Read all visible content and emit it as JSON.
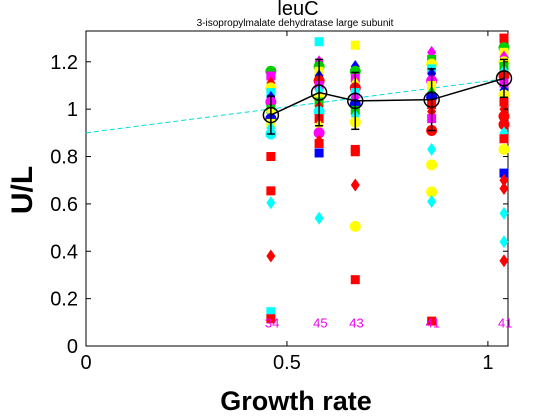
{
  "chart_data": {
    "type": "scatter",
    "title": "leuC",
    "subtitle": "3-isopropylmalate dehydratase large subunit",
    "xlabel": "Growth rate",
    "ylabel": "U/L",
    "xlim": [
      0,
      1.05
    ],
    "ylim": [
      0,
      1.33
    ],
    "xticks": [
      0,
      0.5,
      1
    ],
    "xtick_labels": [
      "0",
      "0.5",
      "1"
    ],
    "yticks": [
      0,
      0.2,
      0.4,
      0.6,
      0.8,
      1,
      1.2
    ],
    "ytick_labels": [
      "0",
      "0.2",
      "0.4",
      "0.6",
      "0.8",
      "1",
      "1.2"
    ],
    "fit_line": {
      "style": "dashed",
      "color": "#00dddd",
      "x": [
        0,
        1.05
      ],
      "y": [
        0.9,
        1.13
      ]
    },
    "mean_series": {
      "color": "#000000",
      "points": [
        {
          "x": 0.46,
          "y": 0.975,
          "err": 0.08
        },
        {
          "x": 0.58,
          "y": 1.07,
          "err": 0.14
        },
        {
          "x": 0.67,
          "y": 1.035,
          "err": 0.12
        },
        {
          "x": 0.86,
          "y": 1.04,
          "err": 0.13
        },
        {
          "x": 1.04,
          "y": 1.13,
          "err": 0.08
        }
      ]
    },
    "sample_counts": [
      {
        "x": 0.46,
        "label": "34"
      },
      {
        "x": 0.58,
        "label": "45"
      },
      {
        "x": 0.67,
        "label": "43"
      },
      {
        "x": 0.86,
        "label": "41"
      },
      {
        "x": 1.04,
        "label": "41"
      }
    ],
    "count_label_y": 0.1,
    "points": [
      {
        "x": 0.46,
        "y": 1.16,
        "shape": "circle",
        "color": "#00cc00"
      },
      {
        "x": 0.46,
        "y": 1.14,
        "shape": "square",
        "color": "#ff00ff"
      },
      {
        "x": 0.46,
        "y": 1.11,
        "shape": "diamond",
        "color": "#ff0000"
      },
      {
        "x": 0.46,
        "y": 1.09,
        "shape": "circle",
        "color": "#ffff00"
      },
      {
        "x": 0.46,
        "y": 1.07,
        "shape": "square",
        "color": "#00ffff"
      },
      {
        "x": 0.46,
        "y": 1.05,
        "shape": "diamond",
        "color": "#0000ff"
      },
      {
        "x": 0.46,
        "y": 1.03,
        "shape": "circle",
        "color": "#ff00ff"
      },
      {
        "x": 0.46,
        "y": 1.0,
        "shape": "square",
        "color": "#00cc00"
      },
      {
        "x": 0.46,
        "y": 0.99,
        "shape": "diamond",
        "color": "#ffff00"
      },
      {
        "x": 0.46,
        "y": 0.96,
        "shape": "circle",
        "color": "#0000ff"
      },
      {
        "x": 0.46,
        "y": 0.94,
        "shape": "square",
        "color": "#ffff00"
      },
      {
        "x": 0.46,
        "y": 0.92,
        "shape": "diamond",
        "color": "#00ffff"
      },
      {
        "x": 0.46,
        "y": 0.895,
        "shape": "circle",
        "color": "#00ffff"
      },
      {
        "x": 0.46,
        "y": 0.8,
        "shape": "square",
        "color": "#ff0000"
      },
      {
        "x": 0.46,
        "y": 0.655,
        "shape": "square",
        "color": "#ff0000"
      },
      {
        "x": 0.46,
        "y": 0.605,
        "shape": "diamond",
        "color": "#00ffff"
      },
      {
        "x": 0.46,
        "y": 0.38,
        "shape": "diamond",
        "color": "#ff0000"
      },
      {
        "x": 0.46,
        "y": 0.145,
        "shape": "square",
        "color": "#00ffff"
      },
      {
        "x": 0.46,
        "y": 0.115,
        "shape": "square",
        "color": "#ff0000"
      },
      {
        "x": 0.58,
        "y": 1.285,
        "shape": "square",
        "color": "#00ffff"
      },
      {
        "x": 0.58,
        "y": 1.2,
        "shape": "diamond",
        "color": "#ff00ff"
      },
      {
        "x": 0.58,
        "y": 1.18,
        "shape": "circle",
        "color": "#00cc00"
      },
      {
        "x": 0.58,
        "y": 1.16,
        "shape": "square",
        "color": "#ffff00"
      },
      {
        "x": 0.58,
        "y": 1.14,
        "shape": "diamond",
        "color": "#0000ff"
      },
      {
        "x": 0.58,
        "y": 1.12,
        "shape": "circle",
        "color": "#ff0000"
      },
      {
        "x": 0.58,
        "y": 1.1,
        "shape": "square",
        "color": "#ff00ff"
      },
      {
        "x": 0.58,
        "y": 1.08,
        "shape": "diamond",
        "color": "#00ffff"
      },
      {
        "x": 0.58,
        "y": 1.05,
        "shape": "circle",
        "color": "#ffff00"
      },
      {
        "x": 0.58,
        "y": 1.03,
        "shape": "square",
        "color": "#00cc00"
      },
      {
        "x": 0.58,
        "y": 1.01,
        "shape": "diamond",
        "color": "#ff0000"
      },
      {
        "x": 0.58,
        "y": 0.99,
        "shape": "circle",
        "color": "#00ffff"
      },
      {
        "x": 0.58,
        "y": 0.96,
        "shape": "square",
        "color": "#ff0000"
      },
      {
        "x": 0.58,
        "y": 0.93,
        "shape": "diamond",
        "color": "#ffff00"
      },
      {
        "x": 0.58,
        "y": 0.9,
        "shape": "circle",
        "color": "#ff00ff"
      },
      {
        "x": 0.58,
        "y": 0.865,
        "shape": "diamond",
        "color": "#ff0000"
      },
      {
        "x": 0.58,
        "y": 0.855,
        "shape": "square",
        "color": "#ff0000"
      },
      {
        "x": 0.58,
        "y": 0.815,
        "shape": "square",
        "color": "#0000ff"
      },
      {
        "x": 0.58,
        "y": 0.54,
        "shape": "diamond",
        "color": "#00ffff"
      },
      {
        "x": 0.67,
        "y": 1.27,
        "shape": "square",
        "color": "#ffff00"
      },
      {
        "x": 0.67,
        "y": 1.18,
        "shape": "diamond",
        "color": "#0000ff"
      },
      {
        "x": 0.67,
        "y": 1.16,
        "shape": "circle",
        "color": "#00cc00"
      },
      {
        "x": 0.67,
        "y": 1.13,
        "shape": "square",
        "color": "#ff00ff"
      },
      {
        "x": 0.67,
        "y": 1.11,
        "shape": "diamond",
        "color": "#ffff00"
      },
      {
        "x": 0.67,
        "y": 1.09,
        "shape": "circle",
        "color": "#ff0000"
      },
      {
        "x": 0.67,
        "y": 1.07,
        "shape": "square",
        "color": "#00ffff"
      },
      {
        "x": 0.67,
        "y": 1.05,
        "shape": "diamond",
        "color": "#ff00ff"
      },
      {
        "x": 0.67,
        "y": 1.02,
        "shape": "circle",
        "color": "#0000ff"
      },
      {
        "x": 0.67,
        "y": 0.995,
        "shape": "square",
        "color": "#00cc00"
      },
      {
        "x": 0.67,
        "y": 0.97,
        "shape": "diamond",
        "color": "#00ffff"
      },
      {
        "x": 0.67,
        "y": 0.945,
        "shape": "circle",
        "color": "#ffff00"
      },
      {
        "x": 0.67,
        "y": 0.83,
        "shape": "square",
        "color": "#ff0000"
      },
      {
        "x": 0.67,
        "y": 0.82,
        "shape": "square",
        "color": "#ff0000"
      },
      {
        "x": 0.67,
        "y": 0.68,
        "shape": "diamond",
        "color": "#ff0000"
      },
      {
        "x": 0.67,
        "y": 0.505,
        "shape": "circle",
        "color": "#ffff00"
      },
      {
        "x": 0.67,
        "y": 0.28,
        "shape": "square",
        "color": "#ff0000"
      },
      {
        "x": 0.86,
        "y": 1.24,
        "shape": "diamond",
        "color": "#ff00ff"
      },
      {
        "x": 0.86,
        "y": 1.21,
        "shape": "square",
        "color": "#00cc00"
      },
      {
        "x": 0.86,
        "y": 1.19,
        "shape": "circle",
        "color": "#ffff00"
      },
      {
        "x": 0.86,
        "y": 1.17,
        "shape": "square",
        "color": "#00ffff"
      },
      {
        "x": 0.86,
        "y": 1.15,
        "shape": "diamond",
        "color": "#0000ff"
      },
      {
        "x": 0.86,
        "y": 1.12,
        "shape": "circle",
        "color": "#ff00ff"
      },
      {
        "x": 0.86,
        "y": 1.1,
        "shape": "square",
        "color": "#ffff00"
      },
      {
        "x": 0.86,
        "y": 1.07,
        "shape": "diamond",
        "color": "#00cc00"
      },
      {
        "x": 0.86,
        "y": 1.05,
        "shape": "circle",
        "color": "#0000ff"
      },
      {
        "x": 0.86,
        "y": 1.02,
        "shape": "square",
        "color": "#ff0000"
      },
      {
        "x": 0.86,
        "y": 0.99,
        "shape": "diamond",
        "color": "#ff0000"
      },
      {
        "x": 0.86,
        "y": 0.96,
        "shape": "square",
        "color": "#ff00ff"
      },
      {
        "x": 0.86,
        "y": 0.91,
        "shape": "circle",
        "color": "#ff0000"
      },
      {
        "x": 0.86,
        "y": 0.83,
        "shape": "diamond",
        "color": "#00ffff"
      },
      {
        "x": 0.86,
        "y": 0.765,
        "shape": "circle",
        "color": "#ffff00"
      },
      {
        "x": 0.86,
        "y": 0.65,
        "shape": "circle",
        "color": "#ffff00"
      },
      {
        "x": 0.86,
        "y": 0.61,
        "shape": "diamond",
        "color": "#00ffff"
      },
      {
        "x": 0.86,
        "y": 0.105,
        "shape": "square",
        "color": "#ff0000"
      },
      {
        "x": 1.04,
        "y": 1.3,
        "shape": "square",
        "color": "#ff0000"
      },
      {
        "x": 1.04,
        "y": 1.28,
        "shape": "diamond",
        "color": "#ff0000"
      },
      {
        "x": 1.04,
        "y": 1.26,
        "shape": "circle",
        "color": "#00cc00"
      },
      {
        "x": 1.04,
        "y": 1.24,
        "shape": "square",
        "color": "#ffff00"
      },
      {
        "x": 1.04,
        "y": 1.22,
        "shape": "diamond",
        "color": "#ff00ff"
      },
      {
        "x": 1.04,
        "y": 1.2,
        "shape": "circle",
        "color": "#ffff00"
      },
      {
        "x": 1.04,
        "y": 1.18,
        "shape": "square",
        "color": "#00cc00"
      },
      {
        "x": 1.04,
        "y": 1.16,
        "shape": "diamond",
        "color": "#00ffff"
      },
      {
        "x": 1.04,
        "y": 1.14,
        "shape": "circle",
        "color": "#ff0000"
      },
      {
        "x": 1.04,
        "y": 1.11,
        "shape": "square",
        "color": "#ff00ff"
      },
      {
        "x": 1.04,
        "y": 1.08,
        "shape": "diamond",
        "color": "#0000ff"
      },
      {
        "x": 1.04,
        "y": 1.06,
        "shape": "circle",
        "color": "#ffff00"
      },
      {
        "x": 1.04,
        "y": 1.03,
        "shape": "square",
        "color": "#ff0000"
      },
      {
        "x": 1.04,
        "y": 1.0,
        "shape": "diamond",
        "color": "#ff0000"
      },
      {
        "x": 1.04,
        "y": 0.97,
        "shape": "circle",
        "color": "#ff0000"
      },
      {
        "x": 1.04,
        "y": 0.935,
        "shape": "circle",
        "color": "#ff0000"
      },
      {
        "x": 1.04,
        "y": 0.9,
        "shape": "diamond",
        "color": "#00ffff"
      },
      {
        "x": 1.04,
        "y": 0.875,
        "shape": "square",
        "color": "#ff0000"
      },
      {
        "x": 1.04,
        "y": 0.83,
        "shape": "circle",
        "color": "#ffff00"
      },
      {
        "x": 1.04,
        "y": 0.73,
        "shape": "square",
        "color": "#0000ff"
      },
      {
        "x": 1.04,
        "y": 0.7,
        "shape": "diamond",
        "color": "#ff0000"
      },
      {
        "x": 1.04,
        "y": 0.665,
        "shape": "diamond",
        "color": "#ff0000"
      },
      {
        "x": 1.04,
        "y": 0.56,
        "shape": "diamond",
        "color": "#00ffff"
      },
      {
        "x": 1.04,
        "y": 0.44,
        "shape": "diamond",
        "color": "#00ffff"
      },
      {
        "x": 1.04,
        "y": 0.36,
        "shape": "diamond",
        "color": "#ff0000"
      }
    ]
  }
}
